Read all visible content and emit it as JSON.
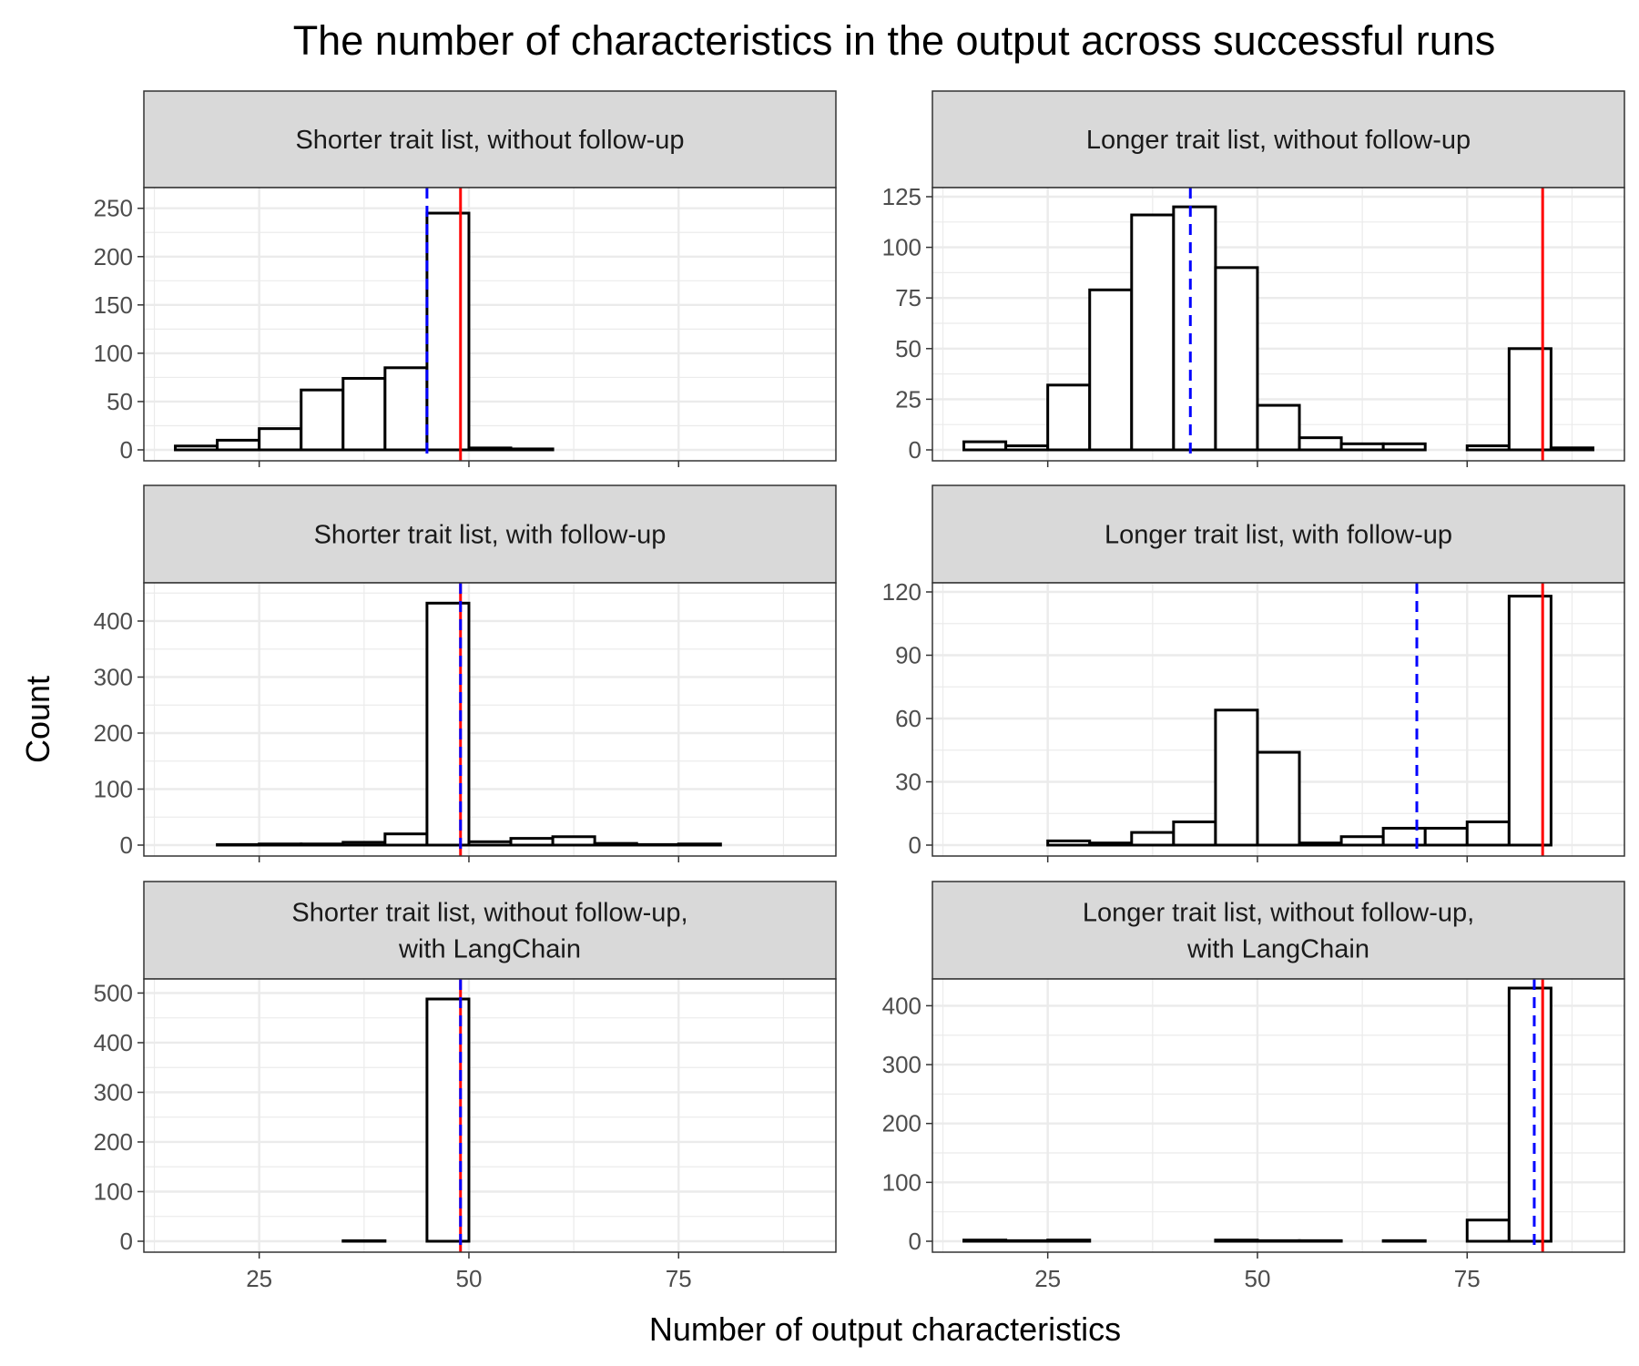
{
  "title": "The number of characteristics in the output across successful runs",
  "xlabel": "Number of output characteristics",
  "ylabel": "Count",
  "colors": {
    "median_line": "#0000FF",
    "target_line": "#FF0000",
    "bar_fill": "#FFFFFF",
    "bar_stroke": "#000000",
    "strip_fill": "#D9D9D9",
    "grid": "#EBEBEB"
  },
  "chart_data": [
    {
      "type": "bar",
      "panel": "Shorter trait list, without follow-up",
      "strip": [
        "Shorter trait list, without follow-up"
      ],
      "bin_width": 5,
      "bin_centers": [
        17.5,
        22.5,
        27.5,
        32.5,
        37.5,
        42.5,
        47.5,
        52.5,
        57.5,
        62.5,
        67.5,
        72.5,
        77.5,
        82.5,
        87.5
      ],
      "values": [
        4,
        10,
        22,
        62,
        74,
        85,
        245,
        2,
        1,
        0,
        0,
        0,
        0,
        0,
        0
      ],
      "ylim": [
        0,
        262
      ],
      "yticks": [
        0,
        50,
        100,
        150,
        200,
        250
      ],
      "xlim": [
        11.25,
        93.75
      ],
      "xticks": [
        25,
        50,
        75
      ],
      "median_x": 45,
      "target_x": 49
    },
    {
      "type": "bar",
      "panel": "Longer trait list, without follow-up",
      "strip": [
        "Longer trait list, without follow-up"
      ],
      "bin_width": 5,
      "bin_centers": [
        17.5,
        22.5,
        27.5,
        32.5,
        37.5,
        42.5,
        47.5,
        52.5,
        57.5,
        62.5,
        67.5,
        72.5,
        77.5,
        82.5,
        87.5
      ],
      "values": [
        4,
        2,
        32,
        79,
        116,
        120,
        90,
        22,
        6,
        3,
        3,
        0,
        2,
        50,
        1
      ],
      "ylim": [
        0,
        125
      ],
      "yticks": [
        0,
        25,
        50,
        75,
        100,
        125
      ],
      "xlim": [
        11.25,
        93.75
      ],
      "xticks": [
        25,
        50,
        75
      ],
      "median_x": 42,
      "target_x": 84
    },
    {
      "type": "bar",
      "panel": "Shorter trait list, with follow-up",
      "strip": [
        "Shorter trait list, with follow-up"
      ],
      "bin_width": 5,
      "bin_centers": [
        17.5,
        22.5,
        27.5,
        32.5,
        37.5,
        42.5,
        47.5,
        52.5,
        57.5,
        62.5,
        67.5,
        72.5,
        77.5,
        82.5,
        87.5
      ],
      "values": [
        0,
        1,
        2,
        2,
        5,
        20,
        432,
        6,
        12,
        15,
        3,
        1,
        2,
        0,
        0
      ],
      "ylim": [
        0,
        452
      ],
      "yticks": [
        0,
        100,
        200,
        300,
        400
      ],
      "xlim": [
        11.25,
        93.75
      ],
      "xticks": [
        25,
        50,
        75
      ],
      "median_x": 49,
      "target_x": 49
    },
    {
      "type": "bar",
      "panel": "Longer trait list, with follow-up",
      "strip": [
        "Longer trait list, with follow-up"
      ],
      "bin_width": 5,
      "bin_centers": [
        17.5,
        22.5,
        27.5,
        32.5,
        37.5,
        42.5,
        47.5,
        52.5,
        57.5,
        62.5,
        67.5,
        72.5,
        77.5,
        82.5,
        87.5
      ],
      "values": [
        0,
        0,
        2,
        1,
        6,
        11,
        64,
        44,
        1,
        4,
        8,
        8,
        11,
        118,
        0
      ],
      "ylim": [
        0,
        120
      ],
      "yticks": [
        0,
        30,
        60,
        90,
        120
      ],
      "xlim": [
        11.25,
        93.75
      ],
      "xticks": [
        25,
        50,
        75
      ],
      "median_x": 69,
      "target_x": 84
    },
    {
      "type": "bar",
      "panel": "Shorter trait list, without follow-up, with LangChain",
      "strip": [
        "Shorter trait list, without follow-up,",
        "with LangChain"
      ],
      "bin_width": 5,
      "bin_centers": [
        17.5,
        22.5,
        27.5,
        32.5,
        37.5,
        42.5,
        47.5,
        52.5,
        57.5,
        62.5,
        67.5,
        72.5,
        77.5,
        82.5,
        87.5
      ],
      "values": [
        0,
        0,
        0,
        0,
        1,
        0,
        488,
        0,
        0,
        0,
        0,
        0,
        0,
        0,
        0
      ],
      "ylim": [
        0,
        510
      ],
      "yticks": [
        0,
        100,
        200,
        300,
        400,
        500
      ],
      "xlim": [
        11.25,
        93.75
      ],
      "xticks": [
        25,
        50,
        75
      ],
      "median_x": 49,
      "target_x": 49
    },
    {
      "type": "bar",
      "panel": "Longer trait list, without follow-up, with LangChain",
      "strip": [
        "Longer trait list, without follow-up,",
        "with LangChain"
      ],
      "bin_width": 5,
      "bin_centers": [
        17.5,
        22.5,
        27.5,
        32.5,
        37.5,
        42.5,
        47.5,
        52.5,
        57.5,
        62.5,
        67.5,
        72.5,
        77.5,
        82.5,
        87.5
      ],
      "values": [
        2,
        1,
        2,
        0,
        0,
        0,
        2,
        1,
        1,
        0,
        1,
        0,
        36,
        430,
        0
      ],
      "ylim": [
        0,
        430
      ],
      "yticks": [
        0,
        100,
        200,
        300,
        400
      ],
      "xlim": [
        11.25,
        93.75
      ],
      "xticks": [
        25,
        50,
        75
      ],
      "median_x": 83,
      "target_x": 84
    }
  ]
}
